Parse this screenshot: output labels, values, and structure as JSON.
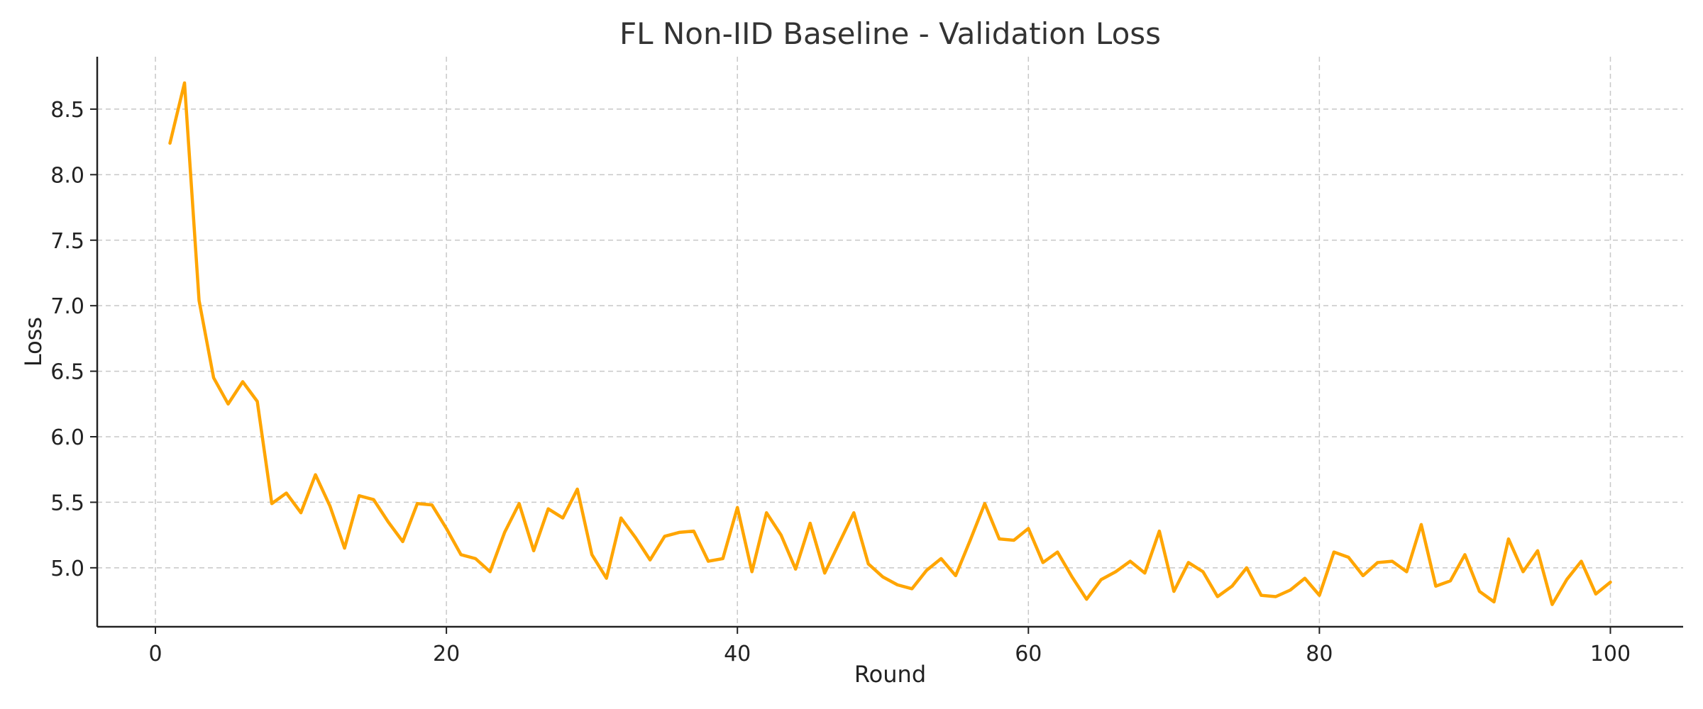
{
  "chart_data": {
    "type": "line",
    "title": "FL Non-IID Baseline - Validation Loss",
    "xlabel": "Round",
    "ylabel": "Loss",
    "xlim": [
      -4,
      105
    ],
    "ylim": [
      4.55,
      8.9
    ],
    "xticks": [
      0,
      20,
      40,
      60,
      80,
      100
    ],
    "yticks": [
      5.0,
      5.5,
      6.0,
      6.5,
      7.0,
      7.5,
      8.0,
      8.5
    ],
    "grid": true,
    "legend": "none",
    "series": [
      {
        "color": "#FFA500",
        "x": [
          1,
          2,
          3,
          4,
          5,
          6,
          7,
          8,
          9,
          10,
          11,
          12,
          13,
          14,
          15,
          16,
          17,
          18,
          19,
          20,
          21,
          22,
          23,
          24,
          25,
          26,
          27,
          28,
          29,
          30,
          31,
          32,
          33,
          34,
          35,
          36,
          37,
          38,
          39,
          40,
          41,
          42,
          43,
          44,
          45,
          46,
          47,
          48,
          49,
          50,
          51,
          52,
          53,
          54,
          55,
          56,
          57,
          58,
          59,
          60,
          61,
          62,
          63,
          64,
          65,
          66,
          67,
          68,
          69,
          70,
          71,
          72,
          73,
          74,
          75,
          76,
          77,
          78,
          79,
          80,
          81,
          82,
          83,
          84,
          85,
          86,
          87,
          88,
          89,
          90,
          91,
          92,
          93,
          94,
          95,
          96,
          97,
          98,
          99,
          100
        ],
        "y": [
          8.24,
          8.7,
          7.04,
          6.45,
          6.25,
          6.42,
          6.27,
          5.49,
          5.57,
          5.42,
          5.71,
          5.47,
          5.15,
          5.55,
          5.52,
          5.35,
          5.2,
          5.49,
          5.48,
          5.3,
          5.1,
          5.07,
          4.97,
          5.27,
          5.49,
          5.13,
          5.45,
          5.38,
          5.6,
          5.1,
          4.92,
          5.38,
          5.23,
          5.06,
          5.24,
          5.27,
          5.28,
          5.05,
          5.07,
          5.46,
          4.97,
          5.42,
          5.25,
          4.99,
          5.34,
          4.96,
          5.19,
          5.42,
          5.03,
          4.93,
          4.87,
          4.84,
          4.98,
          5.07,
          4.94,
          5.21,
          5.49,
          5.22,
          5.21,
          5.3,
          5.04,
          5.12,
          4.93,
          4.76,
          4.91,
          4.97,
          5.05,
          4.96,
          5.28,
          4.82,
          5.04,
          4.97,
          4.78,
          4.86,
          5.0,
          4.79,
          4.78,
          4.83,
          4.92,
          4.79,
          5.12,
          5.08,
          4.94,
          5.04,
          5.05,
          4.97,
          5.33,
          4.86,
          4.9,
          5.1,
          4.82,
          4.74,
          5.22,
          4.97,
          5.13,
          4.72,
          4.91,
          5.05,
          4.8,
          4.89
        ]
      }
    ]
  }
}
